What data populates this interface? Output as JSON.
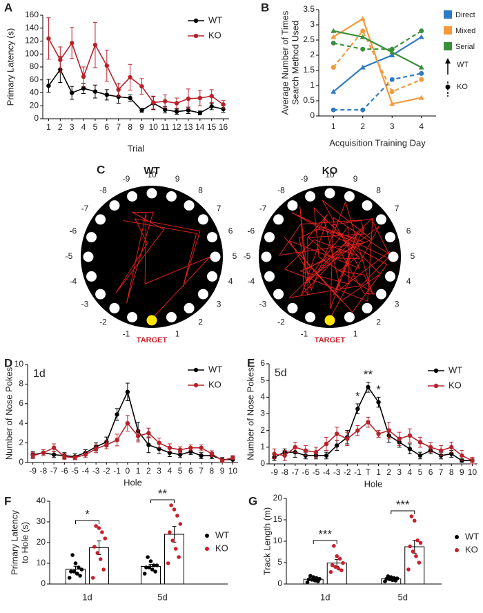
{
  "panel_letters": [
    "A",
    "B",
    "C",
    "D",
    "E",
    "F",
    "G"
  ],
  "track_panel": {
    "titles": [
      "WT",
      "KO"
    ],
    "holes": [
      -9,
      -8,
      -7,
      -6,
      -5,
      -4,
      -3,
      -2,
      -1,
      1,
      2,
      3,
      4,
      5,
      6,
      7,
      8,
      9,
      10
    ],
    "target": "TARGET"
  },
  "chart_data": [
    {
      "type": "line",
      "ylabel": "Primary Latency (s)",
      "xlabel": "Trial",
      "categories": [
        "1",
        "2",
        "3",
        "4",
        "5",
        "6",
        "7",
        "8",
        "9",
        "10",
        "11",
        "12",
        "13",
        "14",
        "15",
        "16"
      ],
      "ylim": [
        0,
        160
      ],
      "yticks": [
        0,
        20,
        40,
        60,
        80,
        100,
        120,
        140,
        160
      ],
      "series": [
        {
          "name": "WT",
          "color": "#000000",
          "values": [
            51,
            76,
            40,
            47,
            42,
            37,
            34,
            32,
            13,
            24,
            14,
            11,
            13,
            9,
            19,
            15
          ],
          "errors": [
            10,
            20,
            10,
            8,
            10,
            8,
            10,
            5,
            3,
            10,
            5,
            4,
            5,
            3,
            5,
            5
          ]
        },
        {
          "name": "KO",
          "color": "#b8212a",
          "values": [
            124,
            91,
            117,
            65,
            114,
            82,
            45,
            64,
            50,
            25,
            27,
            24,
            31,
            32,
            35,
            22
          ],
          "errors": [
            32,
            20,
            24,
            15,
            35,
            24,
            10,
            20,
            12,
            10,
            10,
            8,
            15,
            12,
            10,
            6
          ]
        }
      ]
    },
    {
      "type": "method_line",
      "ylabel": [
        "Average Number of Times",
        "Search Method Used"
      ],
      "xlabel": "Acquisition Training Day",
      "categories": [
        "1",
        "2",
        "3",
        "4"
      ],
      "ylim": [
        0,
        3.5
      ],
      "yticks": [
        0,
        0.5,
        1,
        1.5,
        2,
        2.5,
        3,
        3.5
      ],
      "groups": [
        "WT",
        "KO"
      ],
      "series": [
        {
          "name": "Direct",
          "color": "#2f7ac4",
          "values": [
            [
              0.8,
              1.6,
              2.0,
              2.6
            ],
            [
              0.2,
              0.2,
              1.2,
              1.4
            ]
          ]
        },
        {
          "name": "Mixed",
          "color": "#f39a3c",
          "values": [
            [
              2.6,
              3.2,
              0.4,
              0.6
            ],
            [
              1.6,
              2.8,
              0.8,
              1.2
            ]
          ]
        },
        {
          "name": "Serial",
          "color": "#3b8f3b",
          "values": [
            [
              2.8,
              2.6,
              2.1,
              1.6
            ],
            [
              2.4,
              2.2,
              2.2,
              2.8
            ]
          ]
        }
      ]
    },
    {
      "type": "line",
      "title": "1d",
      "ylabel": "Number of Nose Pokes",
      "xlabel": "Hole",
      "categories": [
        "-9",
        "-8",
        "-7",
        "-6",
        "-5",
        "-4",
        "-3",
        "-2",
        "-1",
        "0",
        "1",
        "2",
        "3",
        "4",
        "5",
        "6",
        "7",
        "8",
        "9",
        "10"
      ],
      "ylim": [
        0,
        10
      ],
      "yticks": [
        0,
        2,
        4,
        6,
        8,
        10
      ],
      "series": [
        {
          "name": "WT",
          "color": "#000000",
          "values": [
            0.8,
            1.0,
            0.8,
            0.7,
            0.6,
            1.0,
            1.6,
            2.1,
            4.9,
            7.2,
            3.2,
            1.8,
            1.4,
            1.0,
            0.8,
            1.1,
            0.7,
            0.7,
            0.3,
            0.3
          ],
          "errors": [
            0.3,
            0.3,
            0.3,
            0.3,
            0.3,
            0.3,
            0.4,
            0.5,
            0.6,
            0.9,
            0.9,
            0.8,
            0.5,
            0.4,
            0.3,
            0.3,
            0.3,
            0.3,
            0.2,
            0.3
          ]
        },
        {
          "name": "KO",
          "color": "#b8212a",
          "values": [
            0.7,
            1.0,
            1.5,
            0.6,
            0.5,
            0.8,
            1.4,
            1.8,
            2.3,
            4.0,
            2.7,
            3.0,
            2.0,
            1.5,
            1.3,
            1.5,
            1.5,
            0.9,
            0.2,
            0.5
          ],
          "errors": [
            0.3,
            0.3,
            0.4,
            0.3,
            0.2,
            0.3,
            0.4,
            0.4,
            0.6,
            0.8,
            0.6,
            0.5,
            0.5,
            0.4,
            0.3,
            0.3,
            0.3,
            0.3,
            0.2,
            0.2
          ]
        }
      ]
    },
    {
      "type": "line",
      "title": "5d",
      "ylabel": "Number of Nose Pokes",
      "xlabel": "Hole",
      "categories": [
        "-9",
        "-8",
        "-7",
        "-6",
        "-5",
        "-4",
        "-3",
        "-2",
        "-1",
        "T",
        "1",
        "2",
        "3",
        "4",
        "5",
        "6",
        "7",
        "8",
        "9",
        "10"
      ],
      "ylim": [
        0,
        6
      ],
      "yticks": [
        0,
        1,
        2,
        3,
        4,
        5,
        6
      ],
      "series": [
        {
          "name": "WT",
          "color": "#000000",
          "values": [
            0.4,
            0.7,
            0.7,
            0.5,
            0.5,
            0.5,
            1.1,
            1.6,
            3.3,
            4.6,
            3.7,
            1.7,
            1.3,
            0.9,
            0.5,
            0.8,
            0.5,
            0.6,
            0.2,
            0.2
          ],
          "errors": [
            0.2,
            0.2,
            0.3,
            0.2,
            0.2,
            0.2,
            0.3,
            0.4,
            0.3,
            0.3,
            0.3,
            0.4,
            0.3,
            0.3,
            0.2,
            0.2,
            0.2,
            0.2,
            0.1,
            0.1
          ]
        },
        {
          "name": "KO",
          "color": "#b8212a",
          "values": [
            0.6,
            0.5,
            1.0,
            0.8,
            0.7,
            1.2,
            1.8,
            1.5,
            2.0,
            2.5,
            1.8,
            2.0,
            1.5,
            1.7,
            1.3,
            1.0,
            0.8,
            1.0,
            0.5,
            0.2
          ],
          "errors": [
            0.3,
            0.3,
            0.3,
            0.3,
            0.3,
            0.4,
            0.4,
            0.4,
            0.3,
            0.3,
            0.2,
            0.5,
            0.4,
            0.4,
            0.3,
            0.3,
            0.3,
            0.3,
            0.3,
            0.2
          ]
        }
      ],
      "annotations": [
        {
          "text": "*",
          "at": "-1"
        },
        {
          "text": "**",
          "at": "T"
        },
        {
          "text": "*",
          "at": "1"
        }
      ]
    },
    {
      "type": "bar_scatter",
      "ylabel": [
        "Primary Latency",
        "to Hole (s)"
      ],
      "categories": [
        "1d",
        "5d"
      ],
      "ylim": [
        0,
        40
      ],
      "yticks": [
        0,
        10,
        20,
        30,
        40
      ],
      "series": [
        {
          "name": "WT",
          "color": "#000000",
          "values": [
            7.2,
            8.5
          ],
          "errors": [
            1.4,
            1.0
          ],
          "points": [
            [
              3,
              4,
              5,
              6,
              6,
              7,
              8,
              10,
              14
            ],
            [
              5,
              6,
              7,
              8,
              8,
              9,
              9,
              11,
              13
            ]
          ]
        },
        {
          "name": "KO",
          "color": "#c8202a",
          "values": [
            17.5,
            24
          ],
          "errors": [
            3.3,
            3.8
          ],
          "points": [
            [
              3,
              7,
              12,
              15,
              18,
              22,
              25,
              27,
              28
            ],
            [
              10,
              13,
              17,
              21,
              25,
              29,
              33,
              36,
              38
            ]
          ]
        }
      ],
      "annotations": [
        "*",
        "**"
      ]
    },
    {
      "type": "bar_scatter",
      "ylabel": "Track Length (m)",
      "categories": [
        "1d",
        "5d"
      ],
      "ylim": [
        0,
        20
      ],
      "yticks": [
        0,
        5,
        10,
        15,
        20
      ],
      "series": [
        {
          "name": "WT",
          "color": "#000000",
          "values": [
            1.1,
            1.2
          ],
          "errors": [
            0.2,
            0.2
          ],
          "points": [
            [
              0.4,
              0.6,
              0.8,
              1.0,
              1.1,
              1.2,
              1.4,
              1.6,
              1.9
            ],
            [
              0.6,
              0.8,
              0.9,
              1.1,
              1.2,
              1.3,
              1.4,
              1.6,
              1.8
            ]
          ]
        },
        {
          "name": "KO",
          "color": "#c8202a",
          "values": [
            4.9,
            8.7
          ],
          "errors": [
            0.8,
            1.5
          ],
          "points": [
            [
              2.8,
              3.2,
              3.6,
              4.0,
              4.4,
              4.9,
              5.9,
              6.5,
              8.9
            ],
            [
              3.4,
              5.0,
              6.5,
              7.6,
              8.8,
              9.6,
              10.2,
              14.8,
              15.8
            ]
          ]
        }
      ],
      "annotations": [
        "***",
        "***"
      ]
    }
  ]
}
